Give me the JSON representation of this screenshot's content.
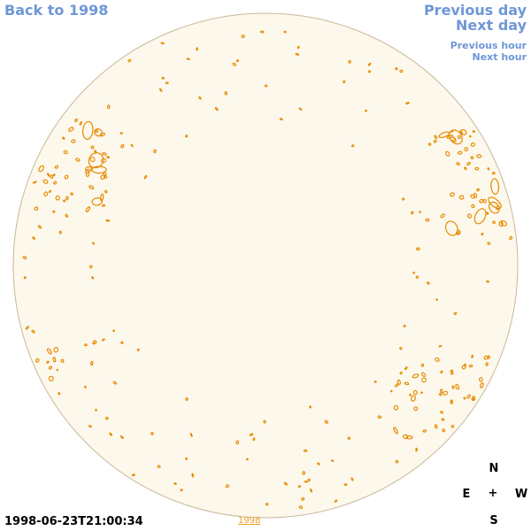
{
  "nav": {
    "back": "Back to 1998",
    "previous_day": "Previous day",
    "next_day": "Next day",
    "previous_hour": "Previous hour",
    "next_hour": "Next hour"
  },
  "timestamp": "1998-06-23T21:00:34",
  "year_link": "1998",
  "compass": {
    "north": "N",
    "east": "E",
    "center": "+",
    "west": "W",
    "south": "S"
  },
  "colors": {
    "disk_fill": "#fdf8ec",
    "disk_border": "#c8b89a",
    "contour": "#e88a00",
    "link": "#6f97d8"
  }
}
